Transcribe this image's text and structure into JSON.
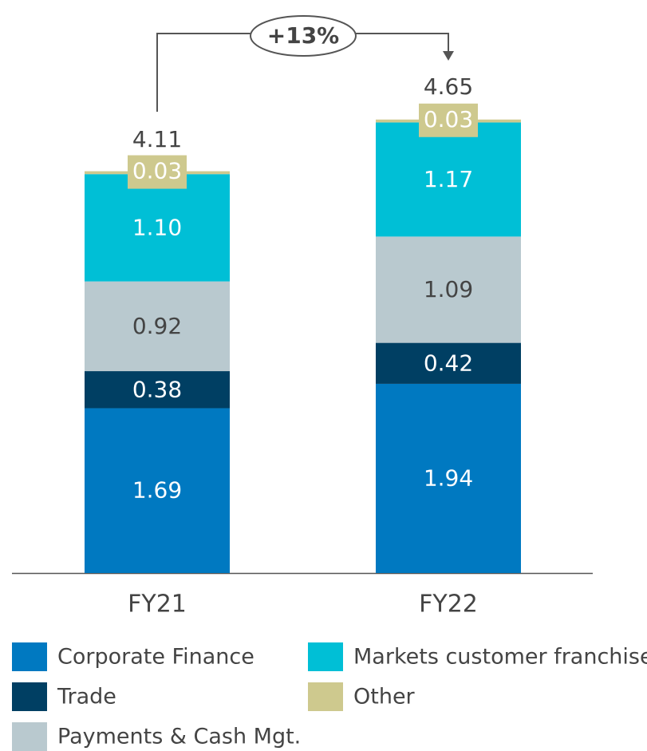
{
  "chart_data": {
    "type": "stacked_bar",
    "categories": [
      "FY21",
      "FY22"
    ],
    "series": [
      {
        "name": "Corporate Finance",
        "color": "#0079c1",
        "values": [
          1.69,
          1.94
        ],
        "value_labels": [
          "1.69",
          "1.94"
        ]
      },
      {
        "name": "Trade",
        "color": "#003f63",
        "values": [
          0.38,
          0.42
        ],
        "value_labels": [
          "0.38",
          "0.42"
        ]
      },
      {
        "name": "Payments & Cash Mgt.",
        "color": "#b9c9cf",
        "values": [
          0.92,
          1.09
        ],
        "value_labels": [
          "0.92",
          "1.09"
        ]
      },
      {
        "name": "Markets customer franchise",
        "color": "#00bfd6",
        "values": [
          1.1,
          1.17
        ],
        "value_labels": [
          "1.10",
          "1.17"
        ]
      },
      {
        "name": "Other",
        "color": "#cec98e",
        "values": [
          0.03,
          0.03
        ],
        "value_labels": [
          "0.03",
          "0.03"
        ]
      }
    ],
    "totals": [
      4.11,
      4.65
    ],
    "annotation": "+13%"
  }
}
